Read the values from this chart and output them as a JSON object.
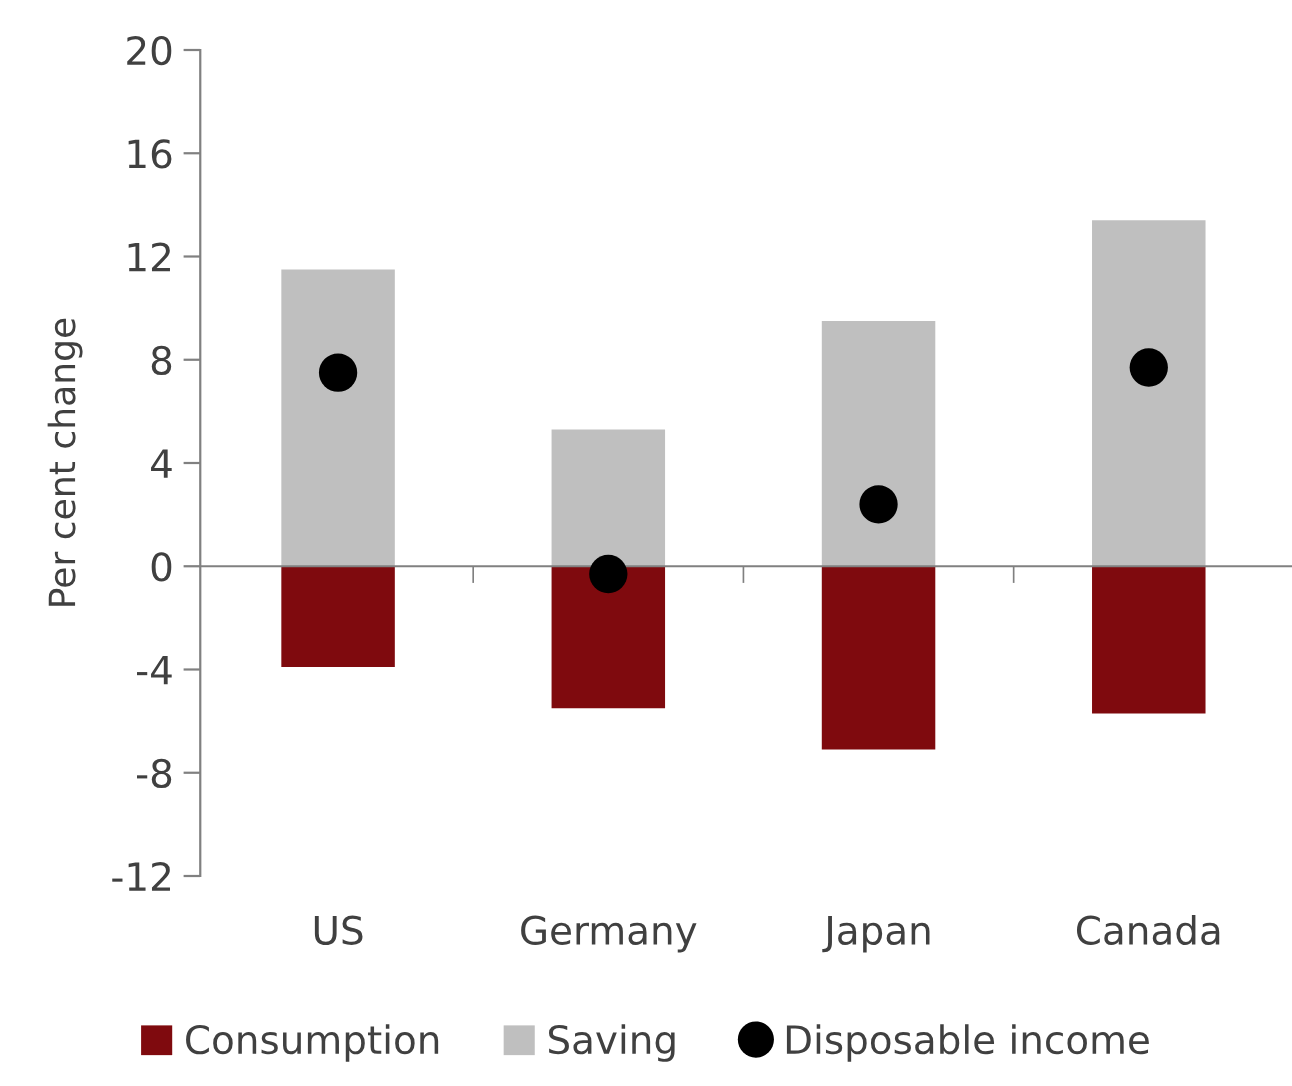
{
  "chart_data": {
    "type": "bar",
    "ylabel": "Per cent change",
    "categories": [
      "US",
      "Germany",
      "Japan",
      "Canada"
    ],
    "series": [
      {
        "name": "Consumption",
        "color": "#7f0a0e",
        "values": [
          -3.9,
          -5.5,
          -7.1,
          -5.7
        ]
      },
      {
        "name": "Saving",
        "color": "#bfbfbf",
        "values": [
          11.5,
          5.3,
          9.5,
          13.4
        ]
      },
      {
        "name": "Disposable income",
        "type": "scatter",
        "marker": "circle",
        "color": "#000000",
        "values": [
          7.5,
          -0.3,
          2.4,
          7.7
        ]
      }
    ],
    "stacked": true,
    "ylim": [
      -12,
      20
    ],
    "yticks": [
      -12,
      -8,
      -4,
      0,
      4,
      8,
      12,
      16,
      20
    ],
    "legend": "bottom"
  }
}
